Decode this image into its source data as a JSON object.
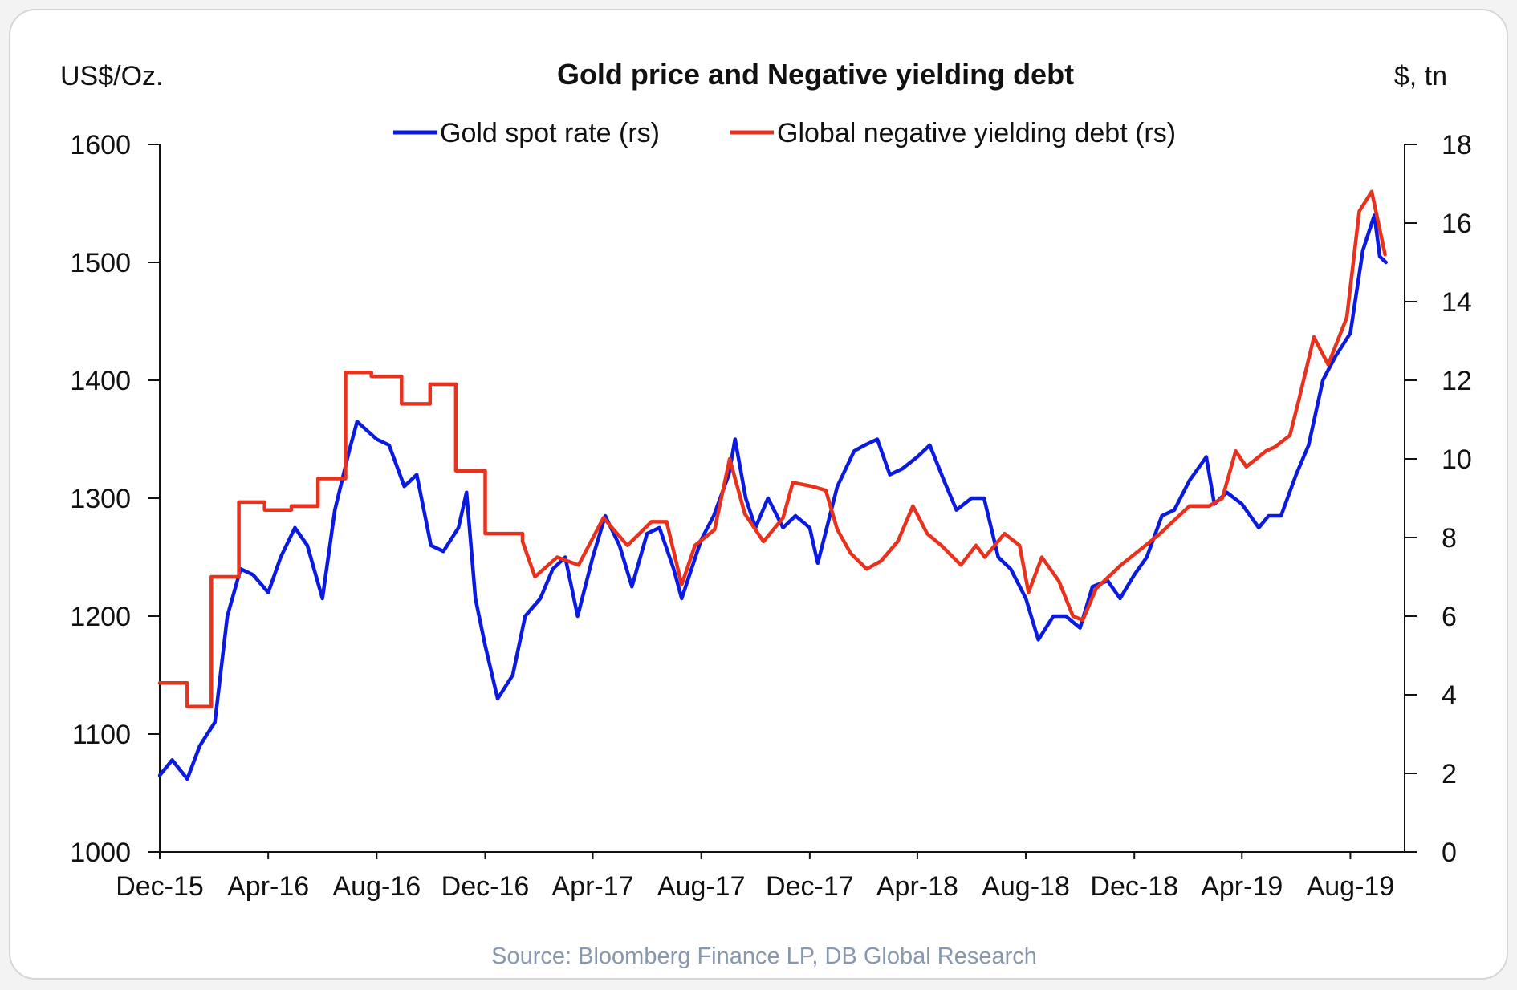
{
  "chart_data": {
    "type": "line",
    "title": "Gold price and Negative yielding debt",
    "left_axis_unit": "US$/Oz.",
    "right_axis_unit": "$, tn",
    "source": "Source: Bloomberg Finance LP,  DB Global Research",
    "xlim": [
      "2015-12-01",
      "2019-10-01"
    ],
    "x_ticks": [
      {
        "date": "2015-12-01",
        "label": "Dec-15"
      },
      {
        "date": "2016-04-01",
        "label": "Apr-16"
      },
      {
        "date": "2016-08-01",
        "label": "Aug-16"
      },
      {
        "date": "2016-12-01",
        "label": "Dec-16"
      },
      {
        "date": "2017-04-01",
        "label": "Apr-17"
      },
      {
        "date": "2017-08-01",
        "label": "Aug-17"
      },
      {
        "date": "2017-12-01",
        "label": "Dec-17"
      },
      {
        "date": "2018-04-01",
        "label": "Apr-18"
      },
      {
        "date": "2018-08-01",
        "label": "Aug-18"
      },
      {
        "date": "2018-12-01",
        "label": "Dec-18"
      },
      {
        "date": "2019-04-01",
        "label": "Apr-19"
      },
      {
        "date": "2019-08-01",
        "label": "Aug-19"
      }
    ],
    "y_left": {
      "lim": [
        1000,
        1600
      ],
      "ticks": [
        "1000",
        "1100",
        "1200",
        "1300",
        "1400",
        "1500",
        "1600"
      ]
    },
    "y_right": {
      "lim": [
        0,
        18
      ],
      "ticks": [
        "0",
        "2",
        "4",
        "6",
        "8",
        "10",
        "12",
        "14",
        "16",
        "18"
      ]
    },
    "grid": false,
    "legend_placement": "top-center",
    "series": [
      {
        "name": "Gold spot rate (rs)",
        "axis": "left",
        "color": "#0b1ae0",
        "points": [
          [
            "2015-12-01",
            1065
          ],
          [
            "2015-12-15",
            1078
          ],
          [
            "2016-01-01",
            1062
          ],
          [
            "2016-01-15",
            1090
          ],
          [
            "2016-02-01",
            1110
          ],
          [
            "2016-02-15",
            1200
          ],
          [
            "2016-03-01",
            1240
          ],
          [
            "2016-03-15",
            1235
          ],
          [
            "2016-04-01",
            1220
          ],
          [
            "2016-04-15",
            1250
          ],
          [
            "2016-05-01",
            1275
          ],
          [
            "2016-05-15",
            1260
          ],
          [
            "2016-06-01",
            1215
          ],
          [
            "2016-06-15",
            1290
          ],
          [
            "2016-07-01",
            1340
          ],
          [
            "2016-07-10",
            1365
          ],
          [
            "2016-08-01",
            1350
          ],
          [
            "2016-08-15",
            1345
          ],
          [
            "2016-09-01",
            1310
          ],
          [
            "2016-09-15",
            1320
          ],
          [
            "2016-10-01",
            1260
          ],
          [
            "2016-10-15",
            1255
          ],
          [
            "2016-11-01",
            1275
          ],
          [
            "2016-11-10",
            1305
          ],
          [
            "2016-11-20",
            1215
          ],
          [
            "2016-12-01",
            1175
          ],
          [
            "2016-12-15",
            1130
          ],
          [
            "2017-01-01",
            1150
          ],
          [
            "2017-01-15",
            1200
          ],
          [
            "2017-02-01",
            1215
          ],
          [
            "2017-02-15",
            1240
          ],
          [
            "2017-03-01",
            1250
          ],
          [
            "2017-03-15",
            1200
          ],
          [
            "2017-04-01",
            1250
          ],
          [
            "2017-04-15",
            1285
          ],
          [
            "2017-05-01",
            1260
          ],
          [
            "2017-05-15",
            1225
          ],
          [
            "2017-06-01",
            1270
          ],
          [
            "2017-06-15",
            1275
          ],
          [
            "2017-07-01",
            1240
          ],
          [
            "2017-07-10",
            1215
          ],
          [
            "2017-08-01",
            1265
          ],
          [
            "2017-08-15",
            1285
          ],
          [
            "2017-09-01",
            1320
          ],
          [
            "2017-09-08",
            1350
          ],
          [
            "2017-09-20",
            1300
          ],
          [
            "2017-10-01",
            1275
          ],
          [
            "2017-10-15",
            1300
          ],
          [
            "2017-11-01",
            1275
          ],
          [
            "2017-11-15",
            1285
          ],
          [
            "2017-12-01",
            1275
          ],
          [
            "2017-12-10",
            1245
          ],
          [
            "2018-01-01",
            1310
          ],
          [
            "2018-01-20",
            1340
          ],
          [
            "2018-02-01",
            1345
          ],
          [
            "2018-02-15",
            1350
          ],
          [
            "2018-03-01",
            1320
          ],
          [
            "2018-03-15",
            1325
          ],
          [
            "2018-04-01",
            1335
          ],
          [
            "2018-04-15",
            1345
          ],
          [
            "2018-05-01",
            1315
          ],
          [
            "2018-05-15",
            1290
          ],
          [
            "2018-06-01",
            1300
          ],
          [
            "2018-06-15",
            1300
          ],
          [
            "2018-07-01",
            1250
          ],
          [
            "2018-07-15",
            1240
          ],
          [
            "2018-08-01",
            1215
          ],
          [
            "2018-08-15",
            1180
          ],
          [
            "2018-09-01",
            1200
          ],
          [
            "2018-09-15",
            1200
          ],
          [
            "2018-10-01",
            1190
          ],
          [
            "2018-10-15",
            1225
          ],
          [
            "2018-11-01",
            1230
          ],
          [
            "2018-11-15",
            1215
          ],
          [
            "2018-12-01",
            1235
          ],
          [
            "2018-12-15",
            1250
          ],
          [
            "2019-01-01",
            1285
          ],
          [
            "2019-01-15",
            1290
          ],
          [
            "2019-02-01",
            1315
          ],
          [
            "2019-02-20",
            1335
          ],
          [
            "2019-03-01",
            1295
          ],
          [
            "2019-03-15",
            1305
          ],
          [
            "2019-04-01",
            1295
          ],
          [
            "2019-04-20",
            1275
          ],
          [
            "2019-05-01",
            1285
          ],
          [
            "2019-05-15",
            1285
          ],
          [
            "2019-06-01",
            1320
          ],
          [
            "2019-06-15",
            1345
          ],
          [
            "2019-07-01",
            1400
          ],
          [
            "2019-07-15",
            1420
          ],
          [
            "2019-08-01",
            1440
          ],
          [
            "2019-08-15",
            1510
          ],
          [
            "2019-08-28",
            1540
          ],
          [
            "2019-09-03",
            1505
          ],
          [
            "2019-09-10",
            1500
          ]
        ]
      },
      {
        "name": "Global negative yielding debt (rs)",
        "axis": "right",
        "color": "#e8321e",
        "points": [
          [
            "2015-12-01",
            4.3
          ],
          [
            "2016-01-01",
            4.3
          ],
          [
            "2016-01-01",
            3.7
          ],
          [
            "2016-01-28",
            3.7
          ],
          [
            "2016-01-28",
            7.0
          ],
          [
            "2016-02-28",
            7.0
          ],
          [
            "2016-02-28",
            8.9
          ],
          [
            "2016-03-28",
            8.9
          ],
          [
            "2016-03-28",
            8.7
          ],
          [
            "2016-04-27",
            8.7
          ],
          [
            "2016-04-27",
            8.8
          ],
          [
            "2016-05-27",
            8.8
          ],
          [
            "2016-05-27",
            9.5
          ],
          [
            "2016-06-27",
            9.5
          ],
          [
            "2016-06-27",
            12.2
          ],
          [
            "2016-07-26",
            12.2
          ],
          [
            "2016-07-26",
            12.1
          ],
          [
            "2016-08-29",
            12.1
          ],
          [
            "2016-08-29",
            11.4
          ],
          [
            "2016-09-30",
            11.4
          ],
          [
            "2016-09-30",
            11.9
          ],
          [
            "2016-10-29",
            11.9
          ],
          [
            "2016-10-29",
            9.7
          ],
          [
            "2016-12-01",
            9.7
          ],
          [
            "2016-12-01",
            8.1
          ],
          [
            "2017-01-12",
            8.1
          ],
          [
            "2017-01-12",
            7.9
          ],
          [
            "2017-01-26",
            7.0
          ],
          [
            "2017-02-20",
            7.5
          ],
          [
            "2017-03-16",
            7.3
          ],
          [
            "2017-04-13",
            8.5
          ],
          [
            "2017-05-10",
            7.8
          ],
          [
            "2017-06-06",
            8.4
          ],
          [
            "2017-06-23",
            8.4
          ],
          [
            "2017-07-10",
            6.8
          ],
          [
            "2017-07-25",
            7.8
          ],
          [
            "2017-08-16",
            8.2
          ],
          [
            "2017-09-02",
            10.0
          ],
          [
            "2017-09-19",
            8.6
          ],
          [
            "2017-10-10",
            7.9
          ],
          [
            "2017-11-01",
            8.5
          ],
          [
            "2017-11-12",
            9.4
          ],
          [
            "2017-12-04",
            9.3
          ],
          [
            "2017-12-19",
            9.2
          ],
          [
            "2018-01-01",
            8.2
          ],
          [
            "2018-01-16",
            7.6
          ],
          [
            "2018-02-03",
            7.2
          ],
          [
            "2018-02-19",
            7.4
          ],
          [
            "2018-03-10",
            7.9
          ],
          [
            "2018-03-27",
            8.8
          ],
          [
            "2018-04-12",
            8.1
          ],
          [
            "2018-04-28",
            7.8
          ],
          [
            "2018-05-20",
            7.3
          ],
          [
            "2018-06-06",
            7.8
          ],
          [
            "2018-06-16",
            7.5
          ],
          [
            "2018-07-08",
            8.1
          ],
          [
            "2018-07-25",
            7.8
          ],
          [
            "2018-08-04",
            6.6
          ],
          [
            "2018-08-19",
            7.5
          ],
          [
            "2018-09-07",
            6.9
          ],
          [
            "2018-09-23",
            6.0
          ],
          [
            "2018-10-04",
            5.9
          ],
          [
            "2018-10-19",
            6.7
          ],
          [
            "2018-11-16",
            7.3
          ],
          [
            "2018-12-08",
            7.7
          ],
          [
            "2018-12-30",
            8.1
          ],
          [
            "2019-02-01",
            8.8
          ],
          [
            "2019-02-23",
            8.8
          ],
          [
            "2019-03-10",
            9.0
          ],
          [
            "2019-03-25",
            10.2
          ],
          [
            "2019-04-06",
            9.8
          ],
          [
            "2019-04-28",
            10.2
          ],
          [
            "2019-05-08",
            10.3
          ],
          [
            "2019-05-25",
            10.6
          ],
          [
            "2019-06-04",
            11.5
          ],
          [
            "2019-06-21",
            13.1
          ],
          [
            "2019-07-07",
            12.4
          ],
          [
            "2019-07-28",
            13.6
          ],
          [
            "2019-08-11",
            16.3
          ],
          [
            "2019-08-25",
            16.8
          ],
          [
            "2019-09-09",
            15.2
          ]
        ]
      }
    ]
  }
}
